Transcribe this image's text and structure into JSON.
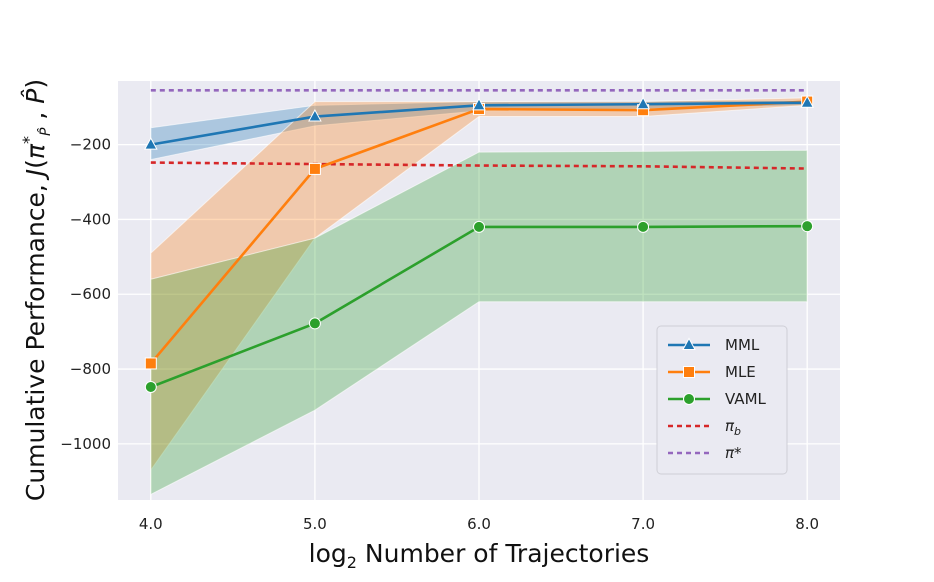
{
  "chart_data": {
    "type": "line",
    "xlabel": "log₂ Number of Trajectories",
    "ylabel": "Cumulative Performance, J(π*_P̂ , P̂)",
    "x": [
      4.0,
      5.0,
      6.0,
      7.0,
      8.0
    ],
    "x_ticks": [
      "4.0",
      "5.0",
      "6.0",
      "7.0",
      "8.0"
    ],
    "xlim": [
      3.8,
      8.2
    ],
    "y_ticks": [
      -1000,
      -800,
      -600,
      -400,
      -200
    ],
    "ylim": [
      -1150,
      -30
    ],
    "grid": true,
    "legend_position": "lower-right",
    "series": [
      {
        "name": "MML",
        "color": "#1f77b4",
        "marker": "triangle",
        "values": [
          -200,
          -125,
          -95,
          -92,
          -88
        ],
        "lower": [
          -240,
          -150,
          -110,
          -105,
          -95
        ],
        "upper": [
          -155,
          -95,
          -85,
          -83,
          -82
        ]
      },
      {
        "name": "MLE",
        "color": "#ff7f0e",
        "marker": "square",
        "values": [
          -785,
          -265,
          -105,
          -108,
          -85
        ],
        "lower": [
          -1070,
          -450,
          -125,
          -125,
          -95
        ],
        "upper": [
          -490,
          -85,
          -85,
          -85,
          -75
        ]
      },
      {
        "name": "VAML",
        "color": "#2ca02c",
        "marker": "circle",
        "values": [
          -848,
          -678,
          -420,
          -420,
          -418
        ],
        "lower": [
          -1135,
          -910,
          -620,
          -620,
          -620
        ],
        "upper": [
          -560,
          -450,
          -220,
          -218,
          -215
        ]
      },
      {
        "name": "πb",
        "color": "#d62728",
        "style": "dashed",
        "values": [
          -248,
          -252,
          -256,
          -258,
          -264
        ]
      },
      {
        "name": "π*",
        "color": "#9467bd",
        "style": "dashed",
        "values": [
          -55,
          -55,
          -55,
          -55,
          -55
        ]
      }
    ]
  }
}
